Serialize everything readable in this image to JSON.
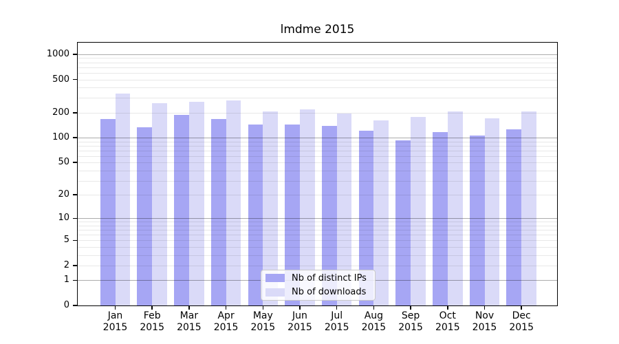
{
  "colors": {
    "bar_ips": "#a6a6f4",
    "bar_downloads": "#dadaf8",
    "grid_major": "rgba(0,0,0,0.33)",
    "grid_minor": "rgba(0,0,0,0.09)",
    "axis": "#000000",
    "legend_border": "#c9c9c9"
  },
  "legend": {
    "items": [
      {
        "label": "Nb of distinct IPs",
        "color_key": "bar_ips"
      },
      {
        "label": "Nb of downloads",
        "color_key": "bar_downloads"
      }
    ]
  },
  "chart_data": {
    "type": "bar",
    "title": "lmdme 2015",
    "xlabel": "",
    "ylabel": "",
    "scale": "log10(1+x)",
    "ylim": [
      0,
      1380
    ],
    "grid": true,
    "legend_position": "lower center",
    "y_ticks": [
      0,
      1,
      2,
      5,
      10,
      20,
      50,
      100,
      200,
      500,
      1000
    ],
    "y_minor_gridlines": [
      2,
      3,
      4,
      5,
      6,
      7,
      8,
      9,
      20,
      30,
      40,
      50,
      60,
      70,
      80,
      90,
      200,
      300,
      400,
      500,
      600,
      700,
      800,
      900
    ],
    "y_major_gridlines": [
      1,
      10,
      100,
      1000
    ],
    "categories": [
      "Jan 2015",
      "Feb 2015",
      "Mar 2015",
      "Apr 2015",
      "May 2015",
      "Jun 2015",
      "Jul 2015",
      "Aug 2015",
      "Sep 2015",
      "Oct 2015",
      "Nov 2015",
      "Dec 2015"
    ],
    "series": [
      {
        "name": "Nb of distinct IPs",
        "values": [
          169,
          133,
          189,
          169,
          143,
          144,
          140,
          121,
          93,
          117,
          107,
          126
        ]
      },
      {
        "name": "Nb of downloads",
        "values": [
          337,
          259,
          272,
          283,
          205,
          218,
          194,
          162,
          179,
          207,
          172,
          206
        ]
      }
    ]
  }
}
